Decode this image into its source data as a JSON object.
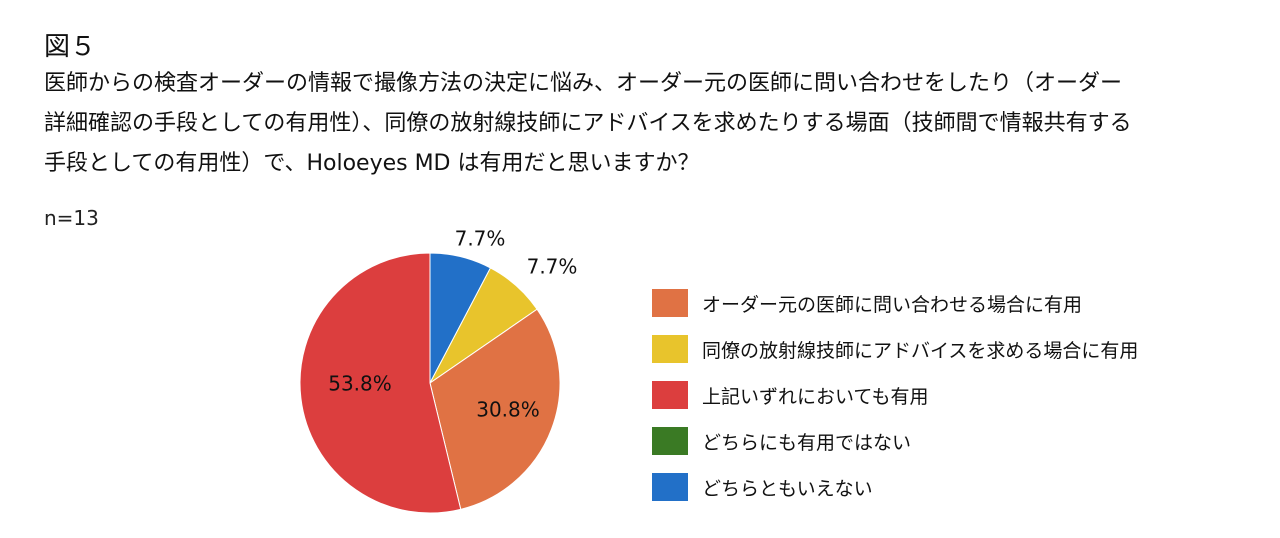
{
  "figure_label": "図５",
  "question_lines": [
    "医師からの検査オーダーの情報で撮像方法の決定に悩み、オーダー元の医師に問い合わせをしたり（オーダー",
    "詳細確認の手段としての有用性）、同僚の放射線技師にアドバイスを求めたりする場面（技師間で情報共有する",
    "手段としての有用性）で、Holoeyes MD は有用だと思いますか？"
  ],
  "sample_size": "n=13",
  "chart_data": {
    "type": "pie",
    "categories": [
      "オーダー元の医師に問い合わせる場合に有用",
      "同僚の放射線技師にアドバイスを求める場合に有用",
      "上記いずれにおいても有用",
      "どちらにも有用ではない",
      "どちらともいえない"
    ],
    "values": [
      30.8,
      7.7,
      53.8,
      0,
      7.7
    ],
    "labels": [
      "30.8%",
      "7.7%",
      "53.8%",
      "",
      "7.7%"
    ],
    "colors": [
      "#e07244",
      "#e8c42c",
      "#dc3e3e",
      "#3a7a24",
      "#2270c8"
    ],
    "slice_order": [
      4,
      1,
      0,
      2
    ],
    "start_angle_deg": 0,
    "direction": "clockwise",
    "legend_position": "right"
  }
}
